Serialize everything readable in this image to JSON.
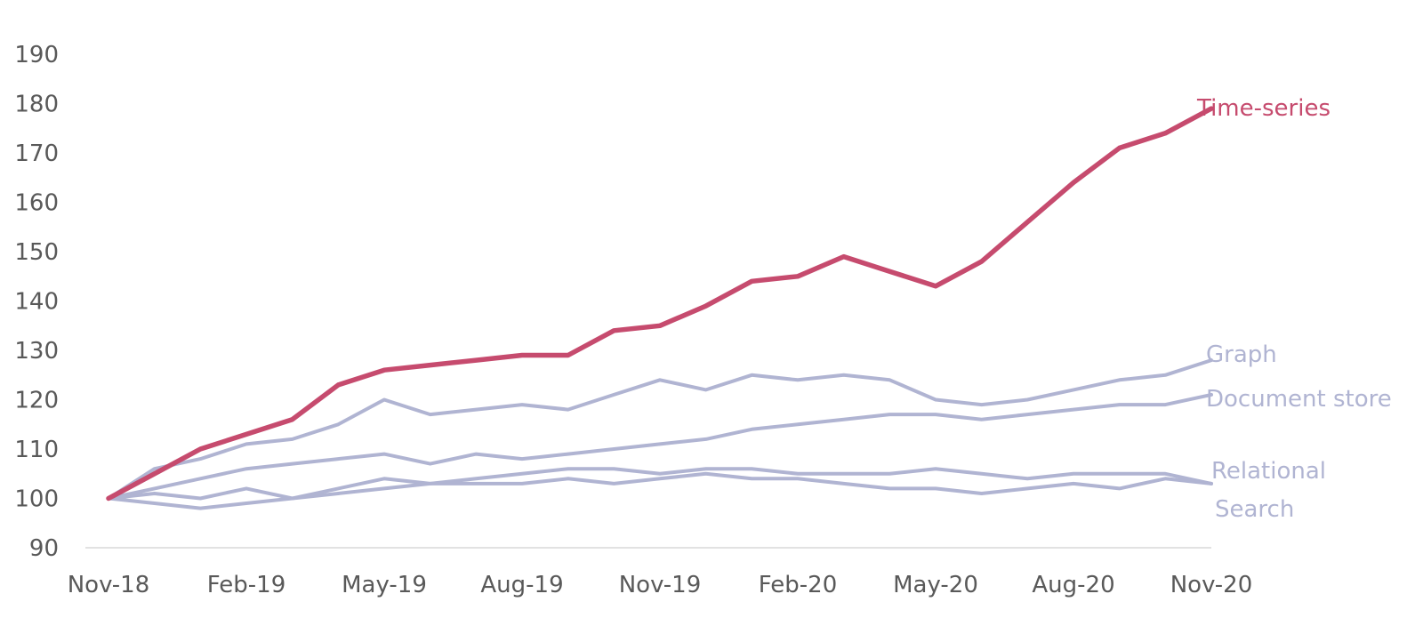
{
  "chart_data": {
    "type": "line",
    "title": "",
    "xlabel": "",
    "ylabel": "",
    "ylim": [
      90,
      190
    ],
    "yticks": [
      90,
      100,
      110,
      120,
      130,
      140,
      150,
      160,
      170,
      180,
      190
    ],
    "grid": false,
    "legend": "inline labels at right end of each line",
    "x": [
      "Nov-18",
      "Dec-18",
      "Jan-19",
      "Feb-19",
      "Mar-19",
      "Apr-19",
      "May-19",
      "Jun-19",
      "Jul-19",
      "Aug-19",
      "Sep-19",
      "Oct-19",
      "Nov-19",
      "Dec-19",
      "Jan-20",
      "Feb-20",
      "Mar-20",
      "Apr-20",
      "May-20",
      "Jun-20",
      "Jul-20",
      "Aug-20",
      "Sep-20",
      "Oct-20",
      "Nov-20"
    ],
    "xtick_labels": [
      "Nov-18",
      "Feb-19",
      "May-19",
      "Aug-19",
      "Nov-19",
      "Feb-20",
      "May-20",
      "Aug-20",
      "Nov-20"
    ],
    "series": [
      {
        "name": "Time-series",
        "color": "#c64b6e",
        "values": [
          100,
          105,
          110,
          113,
          116,
          123,
          126,
          127,
          128,
          129,
          129,
          134,
          135,
          139,
          144,
          145,
          149,
          146,
          143,
          148,
          156,
          164,
          171,
          174,
          179
        ]
      },
      {
        "name": "Graph",
        "color": "#b0b4d2",
        "values": [
          100,
          106,
          108,
          111,
          112,
          115,
          120,
          117,
          118,
          119,
          118,
          121,
          124,
          122,
          125,
          124,
          125,
          124,
          120,
          119,
          120,
          122,
          124,
          125,
          128
        ]
      },
      {
        "name": "Document store",
        "color": "#b0b4d2",
        "values": [
          100,
          102,
          104,
          106,
          107,
          108,
          109,
          107,
          109,
          108,
          109,
          110,
          111,
          112,
          114,
          115,
          116,
          117,
          117,
          116,
          117,
          118,
          119,
          119,
          121
        ]
      },
      {
        "name": "Relational",
        "color": "#b0b4d2",
        "values": [
          100,
          101,
          100,
          102,
          100,
          101,
          102,
          103,
          103,
          103,
          104,
          103,
          104,
          105,
          104,
          104,
          103,
          102,
          102,
          101,
          102,
          103,
          102,
          104,
          103
        ]
      },
      {
        "name": "Search",
        "color": "#b0b4d2",
        "values": [
          100,
          99,
          98,
          99,
          100,
          102,
          104,
          103,
          104,
          105,
          106,
          106,
          105,
          106,
          106,
          105,
          105,
          105,
          106,
          105,
          104,
          105,
          105,
          105,
          103
        ]
      }
    ]
  }
}
